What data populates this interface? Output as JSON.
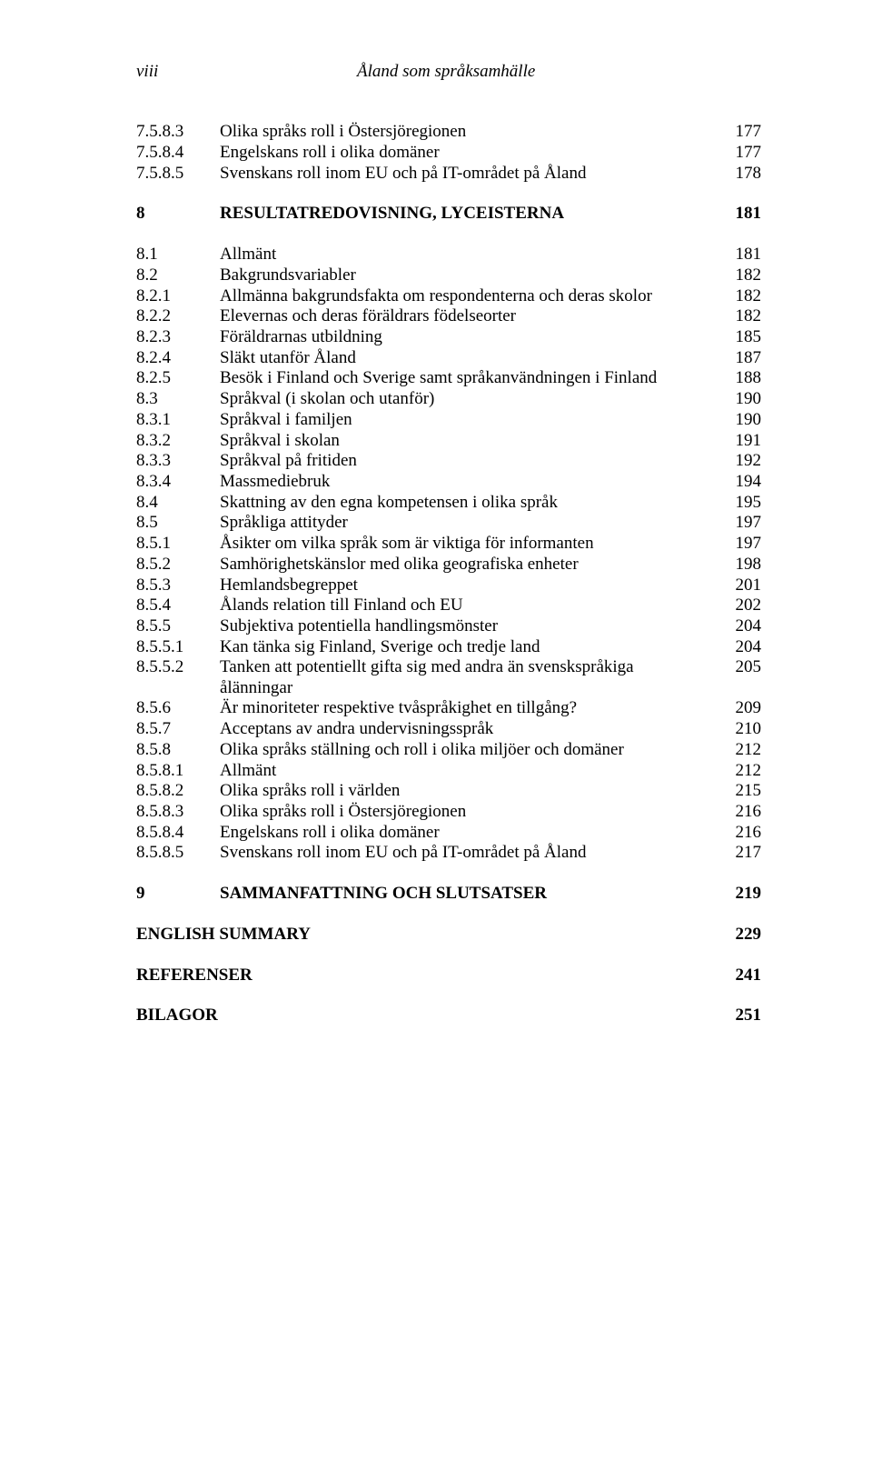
{
  "header": {
    "left": "viii",
    "center": "Åland som språksamhälle"
  },
  "rows": [
    {
      "num": "7.5.8.3",
      "title": "Olika språks roll i Östersjöregionen",
      "page": "177",
      "bold": false
    },
    {
      "num": "7.5.8.4",
      "title": "Engelskans roll i olika domäner",
      "page": "177",
      "bold": false
    },
    {
      "num": "7.5.8.5",
      "title": "Svenskans roll inom EU och på IT-området på Åland",
      "page": "178",
      "bold": false
    },
    {
      "type": "gap"
    },
    {
      "num": "8",
      "title": "RESULTATREDOVISNING, LYCEISTERNA",
      "page": "181",
      "bold": true
    },
    {
      "type": "gap"
    },
    {
      "num": "8.1",
      "title": "Allmänt",
      "page": "181",
      "bold": false
    },
    {
      "num": "8.2",
      "title": "Bakgrundsvariabler",
      "page": "182",
      "bold": false
    },
    {
      "num": "8.2.1",
      "title": "Allmänna bakgrundsfakta om respondenterna och deras skolor",
      "page": "182",
      "bold": false
    },
    {
      "num": "8.2.2",
      "title": "Elevernas och deras föräldrars födelseorter",
      "page": "182",
      "bold": false
    },
    {
      "num": "8.2.3",
      "title": "Föräldrarnas utbildning",
      "page": "185",
      "bold": false
    },
    {
      "num": "8.2.4",
      "title": "Släkt utanför Åland",
      "page": "187",
      "bold": false
    },
    {
      "num": "8.2.5",
      "title": "Besök i Finland och Sverige samt språkanvändningen i Finland",
      "page": "188",
      "bold": false
    },
    {
      "num": "8.3",
      "title": "Språkval (i skolan och utanför)",
      "page": "190",
      "bold": false
    },
    {
      "num": "8.3.1",
      "title": "Språkval i familjen",
      "page": "190",
      "bold": false
    },
    {
      "num": "8.3.2",
      "title": "Språkval i skolan",
      "page": "191",
      "bold": false
    },
    {
      "num": "8.3.3",
      "title": "Språkval på fritiden",
      "page": "192",
      "bold": false
    },
    {
      "num": "8.3.4",
      "title": "Massmediebruk",
      "page": "194",
      "bold": false
    },
    {
      "num": "8.4",
      "title": "Skattning av den egna kompetensen i olika språk",
      "page": "195",
      "bold": false
    },
    {
      "num": "8.5",
      "title": "Språkliga attityder",
      "page": "197",
      "bold": false
    },
    {
      "num": "8.5.1",
      "title": "Åsikter om vilka språk som är viktiga för informanten",
      "page": "197",
      "bold": false
    },
    {
      "num": "8.5.2",
      "title": "Samhörighetskänslor med olika geografiska enheter",
      "page": "198",
      "bold": false
    },
    {
      "num": "8.5.3",
      "title": "Hemlandsbegreppet",
      "page": "201",
      "bold": false
    },
    {
      "num": "8.5.4",
      "title": "Ålands relation till Finland och EU",
      "page": "202",
      "bold": false
    },
    {
      "num": "8.5.5",
      "title": "Subjektiva potentiella handlingsmönster",
      "page": "204",
      "bold": false
    },
    {
      "num": "8.5.5.1",
      "title": "Kan tänka sig Finland, Sverige och tredje land",
      "page": "204",
      "bold": false
    },
    {
      "num": "8.5.5.2",
      "title": "Tanken att potentiellt gifta sig med andra än svenskspråkiga ålänningar",
      "page": "205",
      "bold": false
    },
    {
      "num": "8.5.6",
      "title": "Är minoriteter respektive tvåspråkighet en tillgång?",
      "page": "209",
      "bold": false
    },
    {
      "num": "8.5.7",
      "title": "Acceptans av andra undervisningsspråk",
      "page": "210",
      "bold": false
    },
    {
      "num": "8.5.8",
      "title": "Olika språks ställning och roll i olika miljöer och domäner",
      "page": "212",
      "bold": false
    },
    {
      "num": "8.5.8.1",
      "title": "Allmänt",
      "page": "212",
      "bold": false
    },
    {
      "num": "8.5.8.2",
      "title": "Olika språks roll i världen",
      "page": "215",
      "bold": false
    },
    {
      "num": "8.5.8.3",
      "title": "Olika språks roll i Östersjöregionen",
      "page": "216",
      "bold": false
    },
    {
      "num": "8.5.8.4",
      "title": "Engelskans roll i olika domäner",
      "page": "216",
      "bold": false
    },
    {
      "num": "8.5.8.5",
      "title": "Svenskans roll inom EU och på IT-området på Åland",
      "page": "217",
      "bold": false
    },
    {
      "type": "gap"
    },
    {
      "num": "9",
      "title": "SAMMANFATTNING OCH SLUTSATSER",
      "page": "219",
      "bold": true
    },
    {
      "type": "gap"
    },
    {
      "num": "",
      "title": "ENGLISH SUMMARY",
      "page": "229",
      "bold": true,
      "flush": true
    },
    {
      "type": "gap"
    },
    {
      "num": "",
      "title": "REFERENSER",
      "page": "241",
      "bold": true,
      "flush": true
    },
    {
      "type": "gap"
    },
    {
      "num": "",
      "title": "BILAGOR",
      "page": "251",
      "bold": true,
      "flush": true
    }
  ]
}
